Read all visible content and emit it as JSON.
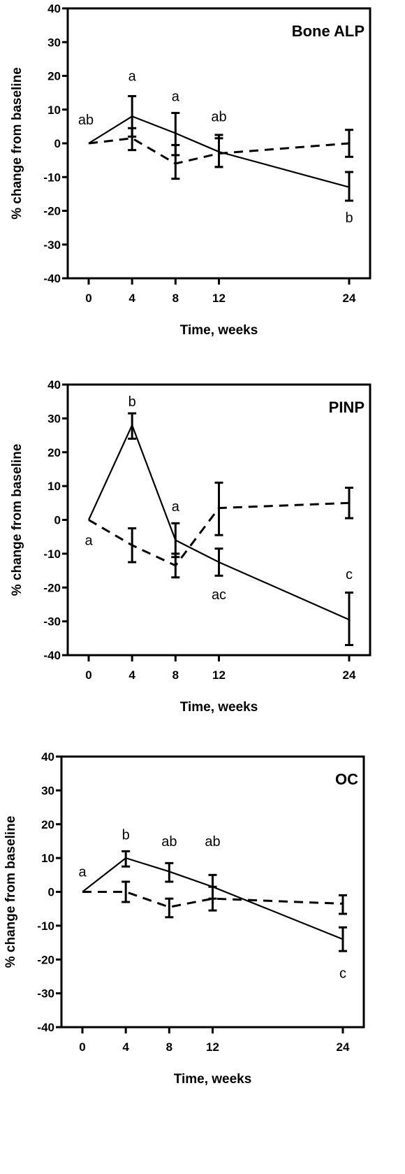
{
  "chart_data": [
    {
      "type": "line",
      "title": "Bone ALP",
      "xlabel": "Time, weeks",
      "ylabel": "% change from baseline",
      "x": [
        0,
        4,
        8,
        12,
        24
      ],
      "xticks": [
        "0",
        "4",
        "8",
        "12",
        "24"
      ],
      "ylim": [
        -40,
        40
      ],
      "yticks": [
        "40",
        "30",
        "20",
        "10",
        "0",
        "-10",
        "-20",
        "-30",
        "-40"
      ],
      "grid": false,
      "series": [
        {
          "style": "solid",
          "values": [
            0,
            8,
            3,
            -2.5,
            -13
          ],
          "err_low": [
            0,
            2,
            -3.5,
            -7,
            -17
          ],
          "err_high": [
            0,
            14,
            9,
            2.5,
            -8.5
          ]
        },
        {
          "style": "dashed",
          "values": [
            0,
            1.5,
            -6,
            -3,
            0
          ],
          "err_low": [
            0,
            -2,
            -10.5,
            -7,
            -4
          ],
          "err_high": [
            0,
            4.5,
            -0.5,
            1.5,
            4
          ]
        }
      ],
      "annotations": [
        {
          "x": 0,
          "y": 7,
          "text": "ab"
        },
        {
          "x": 4,
          "y": 20,
          "text": "a"
        },
        {
          "x": 8,
          "y": 14,
          "text": "a"
        },
        {
          "x": 12,
          "y": 8,
          "text": "ab"
        },
        {
          "x": 24,
          "y": -22,
          "text": "b"
        }
      ]
    },
    {
      "type": "line",
      "title": "PINP",
      "xlabel": "Time, weeks",
      "ylabel": "% change from baseline",
      "x": [
        0,
        4,
        8,
        12,
        24
      ],
      "xticks": [
        "0",
        "4",
        "8",
        "12",
        "24"
      ],
      "ylim": [
        -40,
        40
      ],
      "yticks": [
        "40",
        "30",
        "20",
        "10",
        "0",
        "-10",
        "-20",
        "-30",
        "-40"
      ],
      "grid": false,
      "series": [
        {
          "style": "solid",
          "values": [
            0,
            28,
            -6,
            -12.5,
            -29.5
          ],
          "err_low": [
            0,
            24,
            -11,
            -16.5,
            -37
          ],
          "err_high": [
            0,
            31.5,
            -1,
            -8.5,
            -21.5
          ]
        },
        {
          "style": "dashed",
          "values": [
            0,
            -7.5,
            -13.5,
            3.5,
            5
          ],
          "err_low": [
            0,
            -12.5,
            -17,
            -4.5,
            0.5
          ],
          "err_high": [
            0,
            -2.5,
            -10,
            11,
            9.5
          ]
        }
      ],
      "annotations": [
        {
          "x": 4,
          "y": 35,
          "text": "b"
        },
        {
          "x": 8,
          "y": 4,
          "text": "a"
        },
        {
          "x": 0,
          "y": -6,
          "text": "a"
        },
        {
          "x": 12,
          "y": -22,
          "text": "ac"
        },
        {
          "x": 24,
          "y": -16,
          "text": "c"
        }
      ]
    },
    {
      "type": "line",
      "title": "OC",
      "xlabel": "Time, weeks",
      "ylabel": "% change from baseline",
      "x": [
        0,
        4,
        8,
        12,
        24
      ],
      "xticks": [
        "0",
        "4",
        "8",
        "12",
        "24"
      ],
      "ylim": [
        -40,
        40
      ],
      "yticks": [
        "40",
        "30",
        "20",
        "10",
        "0",
        "-10",
        "-20",
        "-30",
        "-40"
      ],
      "grid": false,
      "series": [
        {
          "style": "solid",
          "values": [
            0,
            10,
            6,
            1.5,
            -14
          ],
          "err_low": [
            0,
            7.5,
            3,
            -2,
            -17.5
          ],
          "err_high": [
            0,
            12,
            8.5,
            5,
            -10.5
          ]
        },
        {
          "style": "dashed",
          "values": [
            0,
            0,
            -4.5,
            -2,
            -3.5
          ],
          "err_low": [
            0,
            -3,
            -7.5,
            -5.5,
            -6.5
          ],
          "err_high": [
            0,
            3,
            -2,
            1.5,
            -1
          ]
        }
      ],
      "annotations": [
        {
          "x": 4,
          "y": 17,
          "text": "b"
        },
        {
          "x": 0,
          "y": 6,
          "text": "a"
        },
        {
          "x": 8,
          "y": 15,
          "text": "ab"
        },
        {
          "x": 12,
          "y": 15,
          "text": "ab"
        },
        {
          "x": 24,
          "y": -24,
          "text": "c"
        }
      ]
    }
  ]
}
